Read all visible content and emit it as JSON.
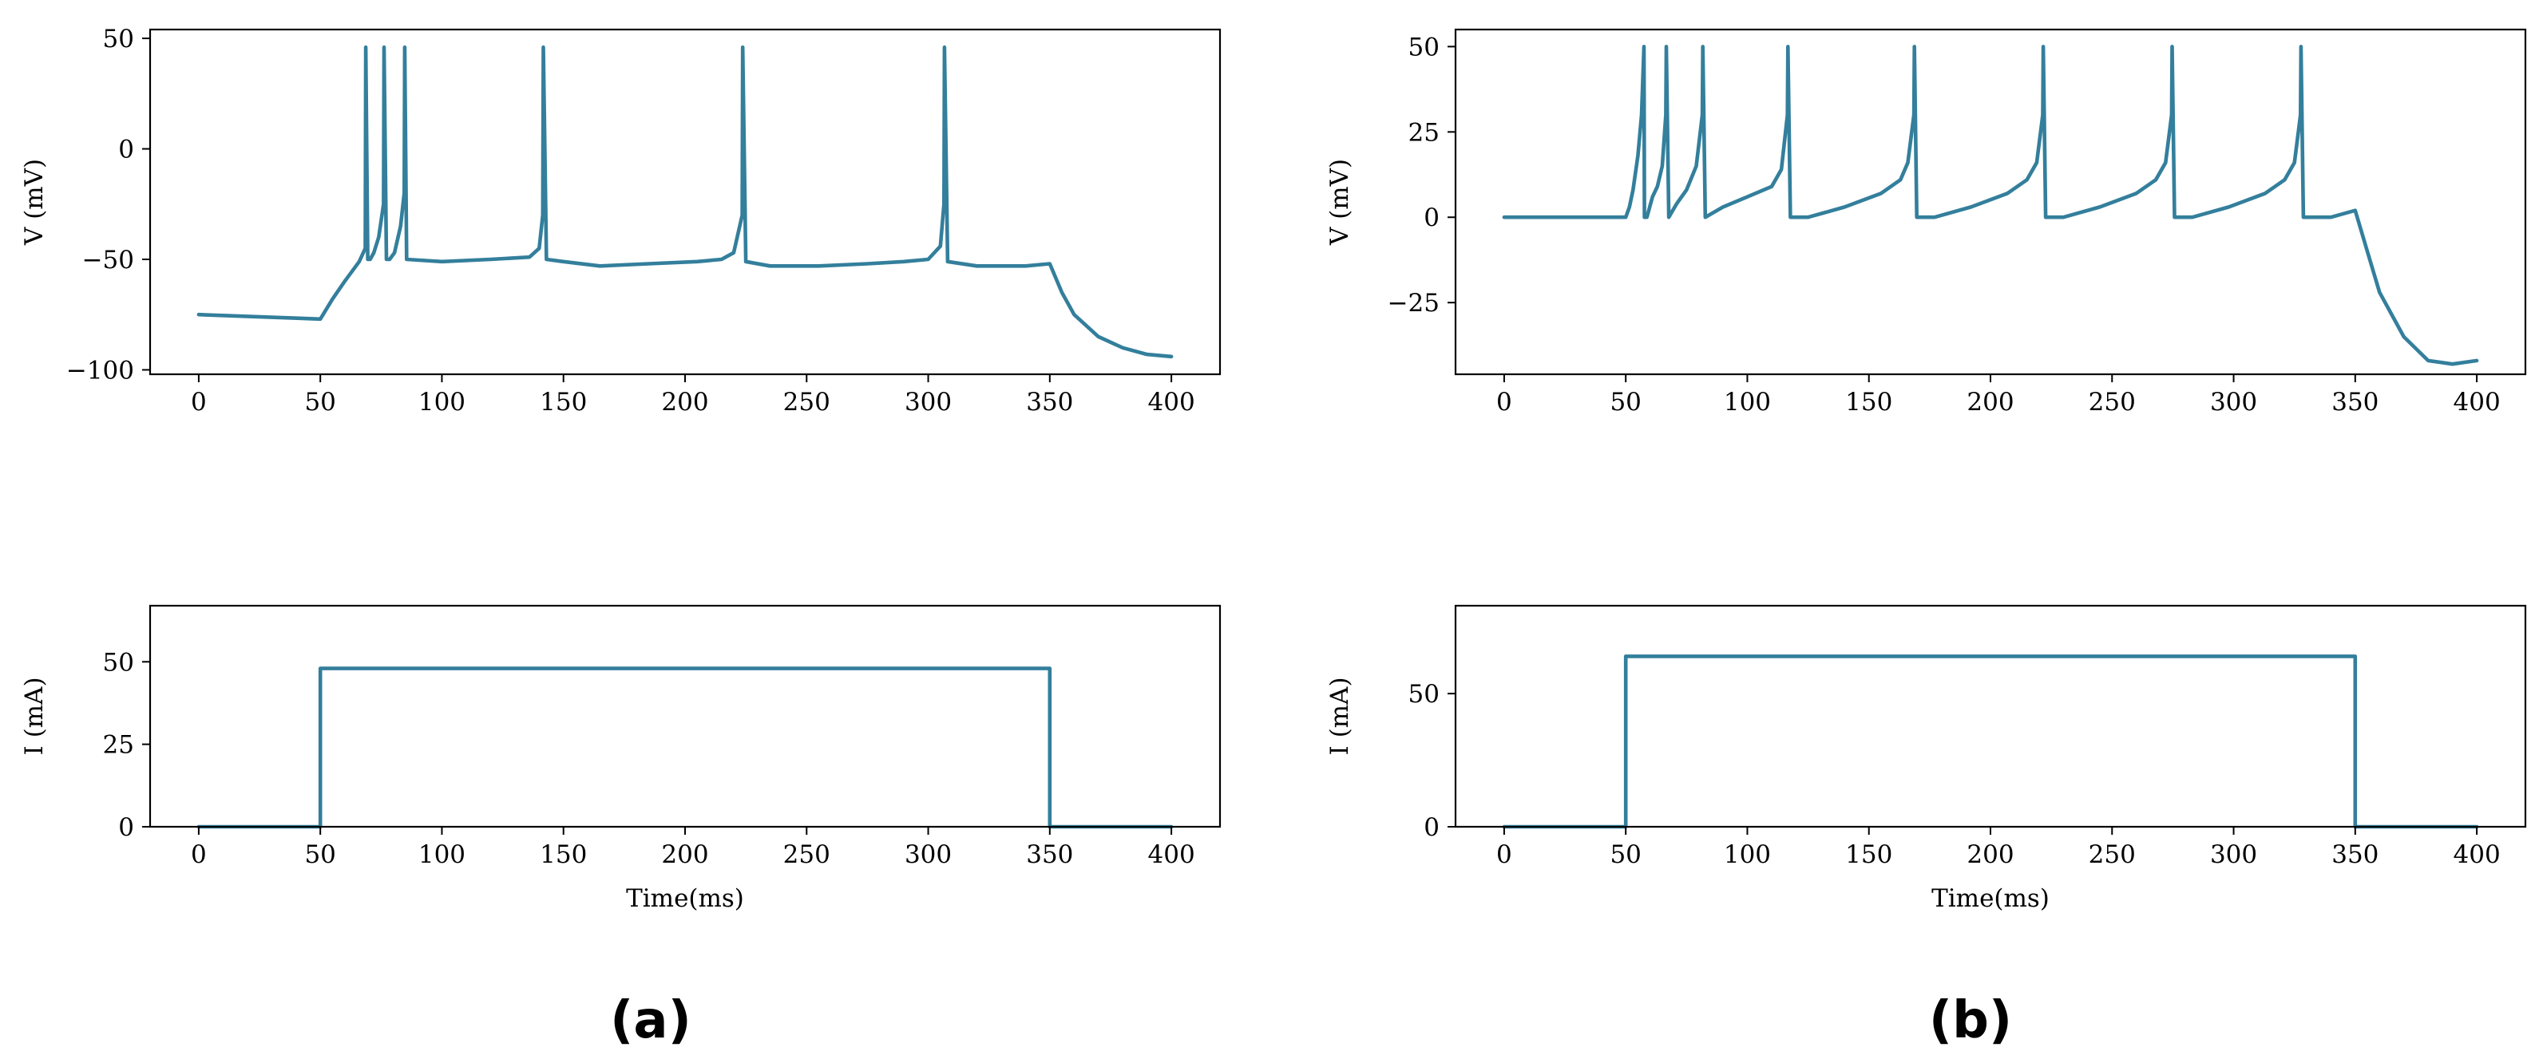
{
  "colors": {
    "series": "#337f9c"
  },
  "panel_labels": [
    "(a)",
    "(b)"
  ],
  "chart_data": [
    {
      "id": "a-voltage",
      "type": "line",
      "xlim": [
        -20,
        420
      ],
      "ylim": [
        -102,
        54
      ],
      "xticks": [
        0,
        50,
        100,
        150,
        200,
        250,
        300,
        350,
        400
      ],
      "yticks": [
        -100,
        -50,
        0,
        50
      ],
      "ytick_labels": [
        "−100",
        "−50",
        "0",
        "50"
      ],
      "xlabel": "",
      "ylabel": "V (mV)",
      "grid": false,
      "series": [
        {
          "x": [
            0,
            50,
            55,
            60,
            66,
            68.5,
            68.7,
            69.5,
            70.5,
            72,
            74,
            76,
            76.2,
            77.2,
            78.5,
            80.5,
            83,
            84.5,
            84.7,
            85.5,
            100,
            120,
            136,
            140,
            141.5,
            141.7,
            143,
            150,
            165,
            185,
            205,
            215,
            220,
            223.5,
            223.7,
            225,
            235,
            255,
            275,
            290,
            300,
            305,
            306.5,
            306.7,
            308,
            320,
            340,
            350,
            355,
            360,
            370,
            380,
            390,
            400
          ],
          "y": [
            -75,
            -77,
            -68,
            -60,
            -51,
            -45,
            46,
            -50,
            -50,
            -47,
            -40,
            -25,
            46,
            -50,
            -50,
            -47,
            -35,
            -20,
            46,
            -50,
            -51,
            -50,
            -49,
            -45,
            -30,
            46,
            -50,
            -51,
            -53,
            -52,
            -51,
            -50,
            -47,
            -30,
            46,
            -51,
            -53,
            -53,
            -52,
            -51,
            -50,
            -44,
            -25,
            46,
            -51,
            -53,
            -53,
            -52,
            -65,
            -75,
            -85,
            -90,
            -93,
            -94
          ]
        }
      ]
    },
    {
      "id": "a-current",
      "type": "line",
      "xlim": [
        -20,
        420
      ],
      "ylim": [
        0,
        67
      ],
      "xticks": [
        0,
        50,
        100,
        150,
        200,
        250,
        300,
        350,
        400
      ],
      "yticks": [
        0,
        25,
        50
      ],
      "ytick_labels": [
        "0",
        "25",
        "50"
      ],
      "xlabel": "Time(ms)",
      "ylabel": "I (mA)",
      "grid": false,
      "series": [
        {
          "x": [
            0,
            50,
            50,
            350,
            350,
            400
          ],
          "y": [
            0,
            0,
            48,
            48,
            0,
            0
          ]
        }
      ]
    },
    {
      "id": "b-voltage",
      "type": "line",
      "xlim": [
        -20,
        420
      ],
      "ylim": [
        -46,
        55
      ],
      "xticks": [
        0,
        50,
        100,
        150,
        200,
        250,
        300,
        350,
        400
      ],
      "yticks": [
        -25,
        0,
        25,
        50
      ],
      "ytick_labels": [
        "−25",
        "0",
        "25",
        "50"
      ],
      "xlabel": "",
      "ylabel": "V (mV)",
      "grid": false,
      "series": [
        {
          "x": [
            0,
            50,
            51.5,
            53,
            55,
            56.5,
            57.5,
            57.7,
            58.7,
            61,
            63,
            65,
            66.5,
            66.7,
            67.7,
            71,
            75,
            79,
            81.5,
            81.7,
            82.7,
            90,
            100,
            110,
            114,
            116.5,
            116.7,
            117.7,
            125,
            140,
            155,
            163,
            166,
            168.5,
            168.7,
            169.7,
            177,
            192,
            207,
            215,
            219,
            221.5,
            221.7,
            222.7,
            230,
            245,
            260,
            268,
            272,
            274.5,
            274.7,
            275.7,
            283,
            298,
            313,
            321,
            325,
            327.5,
            327.7,
            328.7,
            340,
            350,
            355,
            360,
            370,
            380,
            390,
            400
          ],
          "y": [
            0,
            0,
            3,
            8,
            18,
            30,
            50,
            0,
            0,
            6,
            9,
            15,
            30,
            50,
            0,
            4,
            8,
            15,
            30,
            50,
            0,
            3,
            6,
            9,
            14,
            30,
            50,
            0,
            0,
            3,
            7,
            11,
            16,
            30,
            50,
            0,
            0,
            3,
            7,
            11,
            16,
            30,
            50,
            0,
            0,
            3,
            7,
            11,
            16,
            30,
            50,
            0,
            0,
            3,
            7,
            11,
            16,
            30,
            50,
            0,
            0,
            2,
            -10,
            -22,
            -35,
            -42,
            -43,
            -42
          ]
        }
      ]
    },
    {
      "id": "b-current",
      "type": "line",
      "xlim": [
        -20,
        420
      ],
      "ylim": [
        0,
        83
      ],
      "xticks": [
        0,
        50,
        100,
        150,
        200,
        250,
        300,
        350,
        400
      ],
      "yticks": [
        0,
        50
      ],
      "ytick_labels": [
        "0",
        "50"
      ],
      "xlabel": "Time(ms)",
      "ylabel": "I (mA)",
      "grid": false,
      "series": [
        {
          "x": [
            0,
            50,
            50,
            350,
            350,
            400
          ],
          "y": [
            0,
            0,
            64,
            64,
            0,
            0
          ]
        }
      ]
    }
  ]
}
